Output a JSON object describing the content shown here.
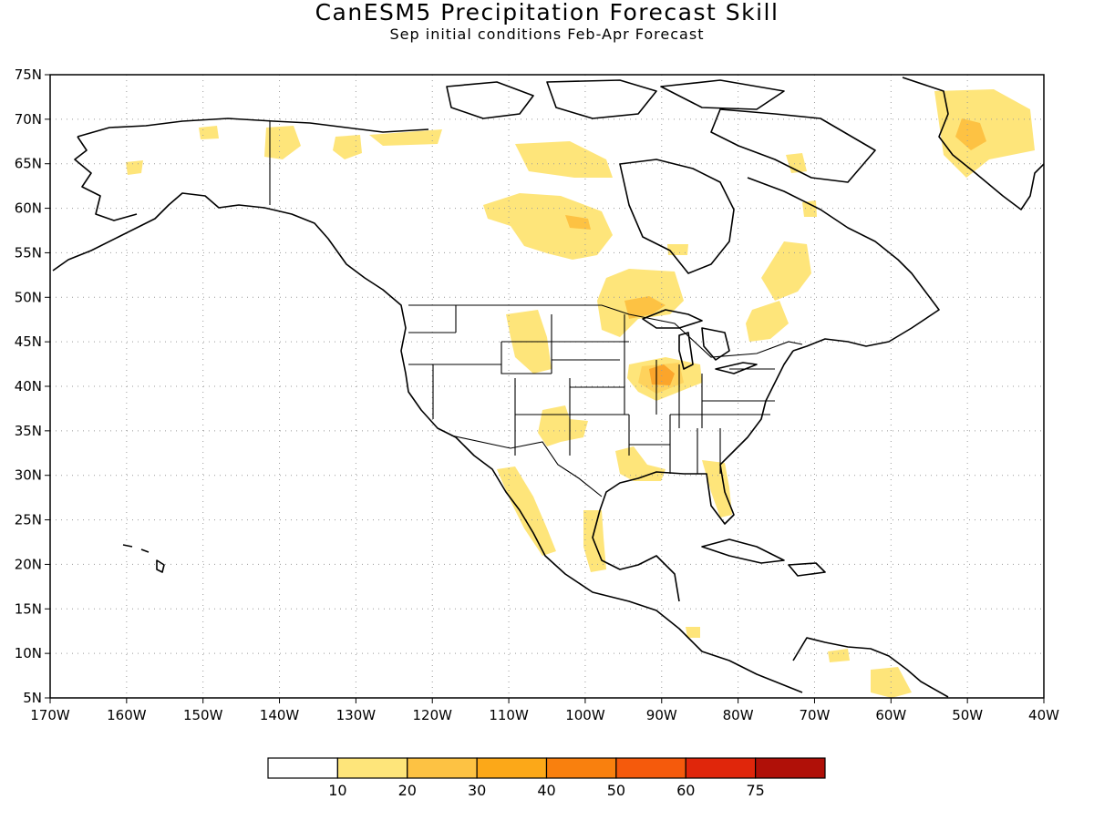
{
  "header": {
    "title": "CanESM5 Precipitation Forecast Skill",
    "subtitle": "Sep initial conditions  Feb-Apr Forecast"
  },
  "map": {
    "lon_range": [
      -170,
      -40
    ],
    "lat_range": [
      5,
      75
    ],
    "lat_ticks": [
      "75N",
      "70N",
      "65N",
      "60N",
      "55N",
      "50N",
      "45N",
      "40N",
      "35N",
      "30N",
      "25N",
      "20N",
      "15N",
      "10N",
      "5N"
    ],
    "lon_ticks": [
      "170W",
      "160W",
      "150W",
      "140W",
      "130W",
      "120W",
      "110W",
      "100W",
      "90W",
      "80W",
      "70W",
      "60W",
      "50W",
      "40W"
    ],
    "grid": true
  },
  "colorbar": {
    "colors": [
      "#ffffff",
      "#fee57a",
      "#fdc243",
      "#fca818",
      "#f9800e",
      "#f55a0c",
      "#e0260b",
      "#b01008"
    ],
    "labels": [
      "10",
      "20",
      "30",
      "40",
      "50",
      "60",
      "75"
    ]
  }
}
